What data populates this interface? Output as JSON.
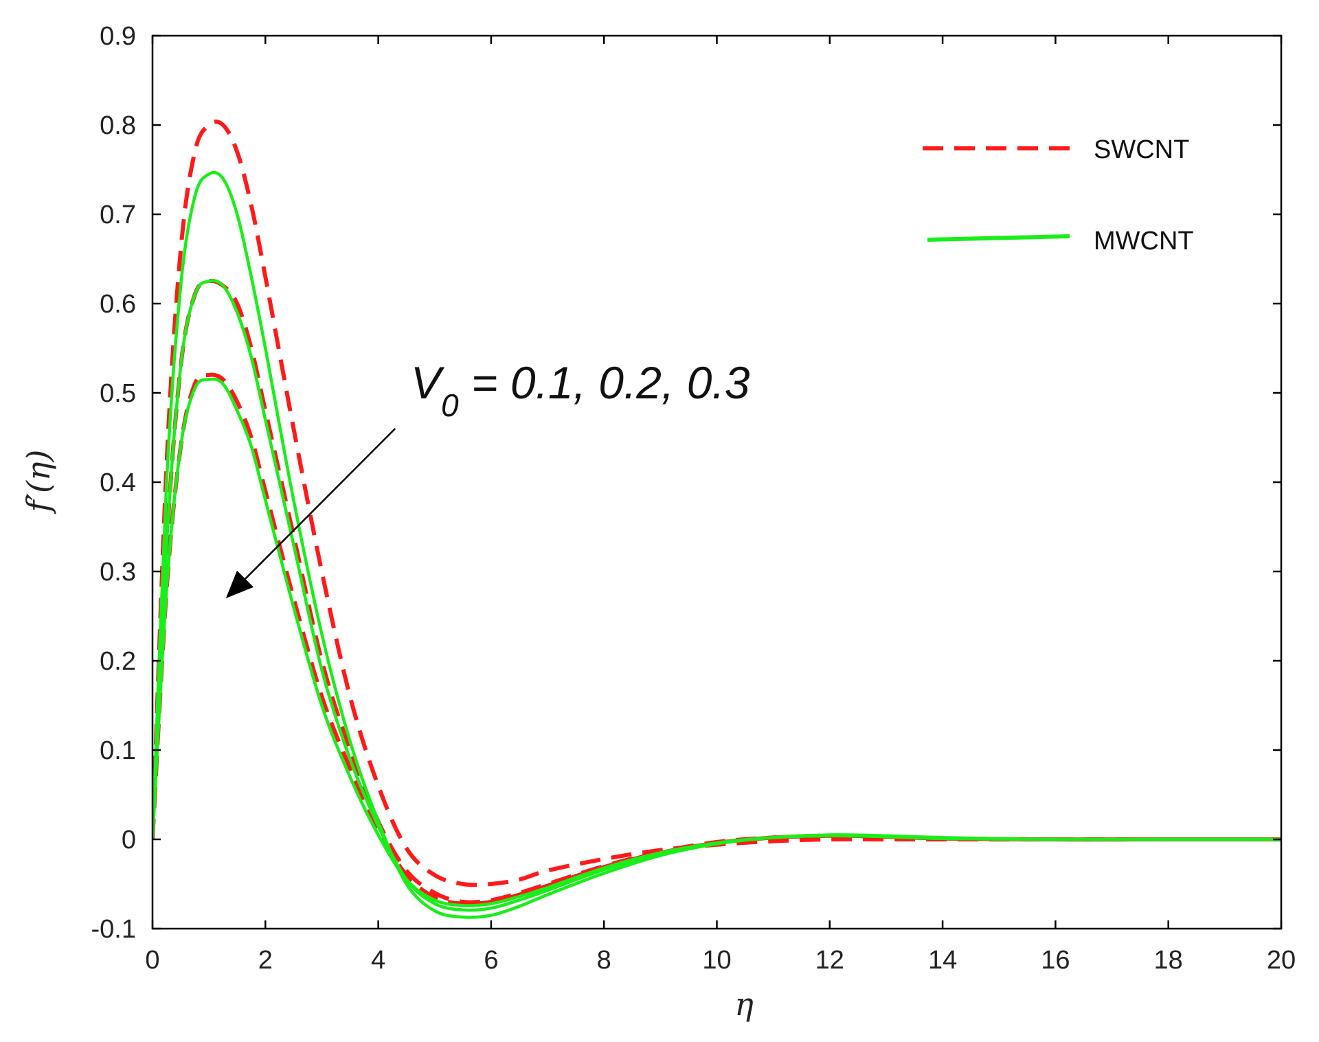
{
  "chart_data": {
    "type": "line",
    "title": "",
    "xlabel": "η",
    "ylabel": "f′(η)",
    "xlim": [
      0,
      20
    ],
    "ylim": [
      -0.1,
      0.9
    ],
    "xticks": [
      0,
      2,
      4,
      6,
      8,
      10,
      12,
      14,
      16,
      18,
      20
    ],
    "yticks": [
      -0.1,
      0,
      0.1,
      0.2,
      0.3,
      0.4,
      0.5,
      0.6,
      0.7,
      0.8,
      0.9
    ],
    "xtick_labels": [
      "0",
      "2",
      "4",
      "6",
      "8",
      "10",
      "12",
      "14",
      "16",
      "18",
      "20"
    ],
    "ytick_labels": [
      "-0.1",
      "0",
      "0.1",
      "0.2",
      "0.3",
      "0.4",
      "0.5",
      "0.6",
      "0.7",
      "0.8",
      "0.9"
    ],
    "grid": false,
    "legend": {
      "position": "top-right",
      "entries": [
        {
          "label": "SWCNT",
          "color": "#ff1a1a",
          "style": "dashed"
        },
        {
          "label": "MWCNT",
          "color": "#1aee1a",
          "style": "solid"
        }
      ]
    },
    "annotation": {
      "symbol": "V",
      "subscript": "0",
      "text": " = 0.1, 0.2, 0.3",
      "arrow_from": [
        4.3,
        0.46
      ],
      "arrow_to": [
        1.3,
        0.27
      ]
    },
    "x": [
      0,
      0.25,
      0.5,
      0.75,
      1.0,
      1.25,
      1.5,
      1.75,
      2.0,
      2.5,
      3.0,
      3.5,
      4.0,
      4.5,
      5.0,
      5.5,
      6.0,
      6.5,
      7.0,
      8.0,
      9.0,
      10.0,
      11.0,
      12.0,
      13.0,
      14.0,
      16.0,
      18.0,
      20.0
    ],
    "series": [
      {
        "name": "SWCNT V0=0.1",
        "group": "SWCNT",
        "color": "#ff1a1a",
        "style": "dashed",
        "values": [
          0,
          0.42,
          0.66,
          0.77,
          0.8,
          0.8,
          0.77,
          0.71,
          0.63,
          0.46,
          0.3,
          0.16,
          0.06,
          -0.01,
          -0.04,
          -0.05,
          -0.05,
          -0.045,
          -0.035,
          -0.022,
          -0.012,
          -0.006,
          -0.002,
          0.0,
          0.0,
          0.0,
          0.0,
          0.0,
          0.0
        ]
      },
      {
        "name": "SWCNT V0=0.2",
        "group": "SWCNT",
        "color": "#ff1a1a",
        "style": "dashed",
        "values": [
          0,
          0.33,
          0.53,
          0.61,
          0.625,
          0.62,
          0.6,
          0.55,
          0.48,
          0.34,
          0.2,
          0.1,
          0.02,
          -0.035,
          -0.06,
          -0.07,
          -0.068,
          -0.06,
          -0.05,
          -0.03,
          -0.014,
          -0.003,
          0.002,
          0.004,
          0.003,
          0.001,
          0.0,
          0.0,
          0.0
        ]
      },
      {
        "name": "SWCNT V0=0.3",
        "group": "SWCNT",
        "color": "#ff1a1a",
        "style": "dashed",
        "values": [
          0,
          0.28,
          0.44,
          0.51,
          0.52,
          0.515,
          0.49,
          0.45,
          0.39,
          0.27,
          0.16,
          0.08,
          0.01,
          -0.04,
          -0.065,
          -0.072,
          -0.07,
          -0.062,
          -0.052,
          -0.031,
          -0.015,
          -0.004,
          0.002,
          0.004,
          0.003,
          0.001,
          0.0,
          0.0,
          0.0
        ]
      },
      {
        "name": "MWCNT V0=0.1",
        "group": "MWCNT",
        "color": "#1aee1a",
        "style": "solid",
        "values": [
          0,
          0.4,
          0.62,
          0.72,
          0.745,
          0.74,
          0.7,
          0.63,
          0.55,
          0.38,
          0.23,
          0.11,
          0.02,
          -0.05,
          -0.08,
          -0.087,
          -0.085,
          -0.075,
          -0.062,
          -0.038,
          -0.018,
          -0.005,
          0.002,
          0.005,
          0.004,
          0.002,
          0.0,
          0.0,
          0.0
        ]
      },
      {
        "name": "MWCNT V0=0.2",
        "group": "MWCNT",
        "color": "#1aee1a",
        "style": "solid",
        "values": [
          0,
          0.33,
          0.53,
          0.61,
          0.625,
          0.62,
          0.59,
          0.54,
          0.47,
          0.33,
          0.19,
          0.09,
          0.015,
          -0.045,
          -0.072,
          -0.079,
          -0.077,
          -0.068,
          -0.057,
          -0.034,
          -0.016,
          -0.004,
          0.002,
          0.004,
          0.003,
          0.001,
          0.0,
          0.0,
          0.0
        ]
      },
      {
        "name": "MWCNT V0=0.3",
        "group": "MWCNT",
        "color": "#1aee1a",
        "style": "solid",
        "values": [
          0,
          0.28,
          0.44,
          0.505,
          0.515,
          0.51,
          0.48,
          0.44,
          0.38,
          0.26,
          0.15,
          0.07,
          0.005,
          -0.045,
          -0.068,
          -0.074,
          -0.072,
          -0.064,
          -0.054,
          -0.032,
          -0.015,
          -0.004,
          0.002,
          0.004,
          0.003,
          0.001,
          0.0,
          0.0,
          0.0
        ]
      }
    ]
  }
}
